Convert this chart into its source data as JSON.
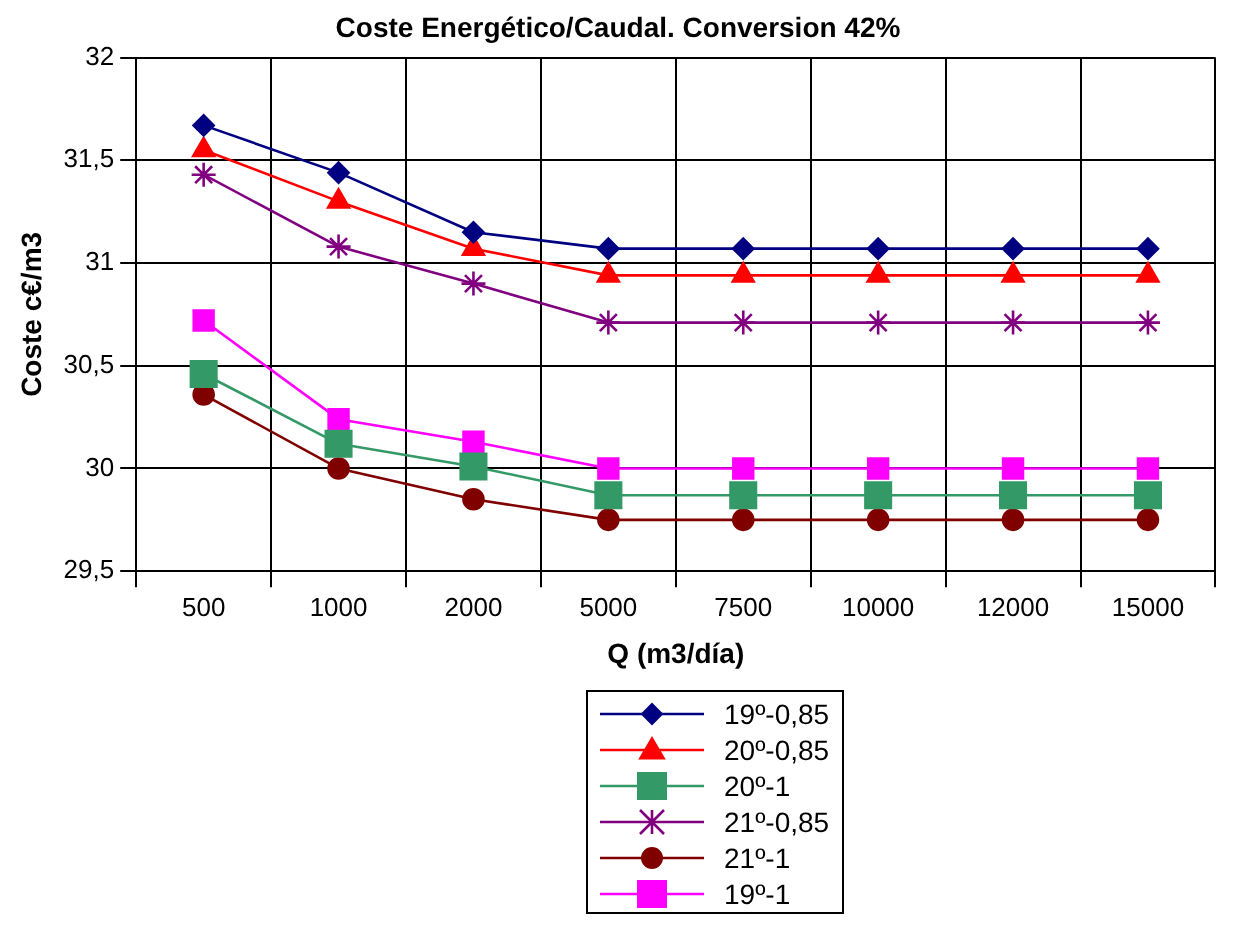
{
  "chart_data": {
    "type": "line",
    "title": "Coste Energético/Caudal. Conversion 42%",
    "xlabel": "Q (m3/día)",
    "ylabel": "Coste c€/m3",
    "categories": [
      "500",
      "1000",
      "2000",
      "5000",
      "7500",
      "10000",
      "12000",
      "15000"
    ],
    "ylim": [
      29.5,
      32
    ],
    "yticks": [
      {
        "value": 29.5,
        "label": "29,5"
      },
      {
        "value": 30,
        "label": "30"
      },
      {
        "value": 30.5,
        "label": "30,5"
      },
      {
        "value": 31,
        "label": "31"
      },
      {
        "value": 31.5,
        "label": "31,5"
      },
      {
        "value": 32,
        "label": "32"
      }
    ],
    "grid": true,
    "legend": "bottom",
    "line_style": "solid",
    "series": [
      {
        "name": "19º-0,85",
        "color": "#000080",
        "marker": "diamond",
        "values": [
          31.67,
          31.44,
          31.15,
          31.07,
          31.07,
          31.07,
          31.07,
          31.07
        ]
      },
      {
        "name": "20º-0,85",
        "color": "#ff0000",
        "marker": "triangle",
        "values": [
          31.55,
          31.3,
          31.07,
          30.94,
          30.94,
          30.94,
          30.94,
          30.94
        ]
      },
      {
        "name": "20º-1",
        "color": "#339966",
        "marker": "square",
        "values": [
          30.46,
          30.12,
          30.01,
          29.87,
          29.87,
          29.87,
          29.87,
          29.87
        ]
      },
      {
        "name": "21º-0,85",
        "color": "#800080",
        "marker": "cross",
        "values": [
          31.43,
          31.08,
          30.9,
          30.71,
          30.71,
          30.71,
          30.71,
          30.71
        ]
      },
      {
        "name": "21º-1",
        "color": "#800000",
        "marker": "circle",
        "values": [
          30.36,
          30,
          29.85,
          29.75,
          29.75,
          29.75,
          29.75,
          29.75
        ]
      },
      {
        "name": "19º-1",
        "color": "#ff00ff",
        "marker": "square",
        "values": [
          30.72,
          30.24,
          30.13,
          30,
          30,
          30,
          30,
          30
        ]
      }
    ]
  }
}
